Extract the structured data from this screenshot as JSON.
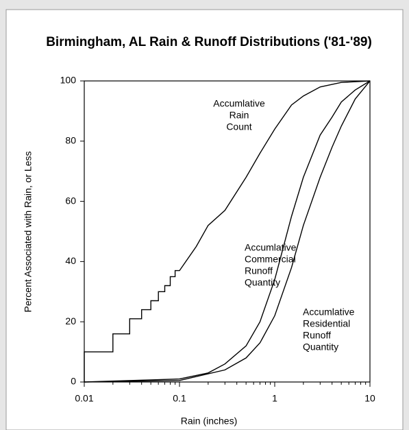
{
  "chart_data": {
    "type": "line",
    "title": "Birmingham, AL Rain & Runoff Distributions ('81-'89)",
    "x_label": "Rain (inches)",
    "y_label": "Percent Associated with Rain, or Less",
    "x_scale": "log",
    "xlim": [
      0.01,
      10
    ],
    "xticks": [
      0.01,
      0.1,
      1,
      10
    ],
    "xminorticks": [
      0.02,
      0.03,
      0.04,
      0.05,
      0.06,
      0.07,
      0.08,
      0.09,
      0.2,
      0.3,
      0.4,
      0.5,
      0.6,
      0.7,
      0.8,
      0.9,
      2,
      3,
      4,
      5,
      6,
      7,
      8,
      9
    ],
    "ylim": [
      0,
      100
    ],
    "yticks": [
      0,
      20,
      40,
      60,
      80,
      100
    ],
    "series": [
      {
        "color": "#000000",
        "x": [
          0.01,
          0.01,
          0.02,
          0.02,
          0.03,
          0.03,
          0.04,
          0.04,
          0.05,
          0.05,
          0.06,
          0.06,
          0.07,
          0.07,
          0.08,
          0.08,
          0.09,
          0.09,
          0.1,
          0.15,
          0.2,
          0.3,
          0.5,
          0.7,
          1,
          1.5,
          2,
          3,
          5,
          10
        ],
        "values": [
          0,
          10,
          10,
          16,
          16,
          21,
          21,
          24,
          24,
          27,
          27,
          30,
          30,
          32,
          32,
          35,
          35,
          37,
          37,
          45,
          52,
          57,
          68,
          76,
          84,
          92,
          95,
          98,
          99.5,
          100
        ]
      },
      {
        "color": "#000000",
        "x": [
          0.01,
          0.1,
          0.2,
          0.3,
          0.5,
          0.7,
          1,
          1.5,
          2,
          3,
          4,
          5,
          7,
          10
        ],
        "values": [
          0,
          1,
          3,
          6,
          12,
          20,
          34,
          55,
          68,
          82,
          88,
          93,
          97,
          100
        ]
      },
      {
        "color": "#000000",
        "x": [
          0.01,
          0.1,
          0.3,
          0.5,
          0.7,
          1,
          1.5,
          2,
          3,
          4,
          5,
          7,
          10
        ],
        "values": [
          0,
          0.5,
          4,
          8,
          13,
          22,
          38,
          52,
          68,
          78,
          85,
          94,
          100
        ]
      }
    ],
    "annotations": [
      [
        "Accumlative",
        "Rain",
        "Count"
      ],
      [
        "Accumlative",
        "Commercial",
        "Runoff",
        "Quantity"
      ],
      [
        "Accumlative",
        "Residential",
        "Runoff",
        "Quantity"
      ]
    ]
  }
}
